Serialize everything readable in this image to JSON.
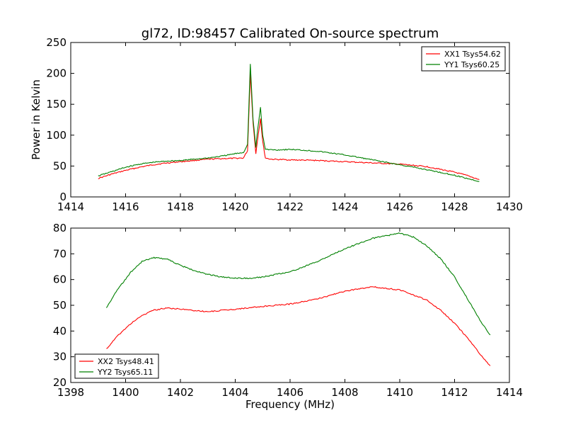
{
  "figure": {
    "title": "gl72, ID:98457 Calibrated On-source spectrum",
    "xlabel": "Frequency (MHz)"
  },
  "chart_data": [
    {
      "type": "line",
      "title": "gl72, ID:98457 Calibrated On-source spectrum",
      "xlabel": "",
      "ylabel": "Power in Kelvin",
      "xlim": [
        1414,
        1430
      ],
      "ylim": [
        0,
        250
      ],
      "xticks": [
        1414,
        1416,
        1418,
        1420,
        1422,
        1424,
        1426,
        1428,
        1430
      ],
      "yticks": [
        0,
        50,
        100,
        150,
        200,
        250
      ],
      "grid": false,
      "legend_position": "top-right",
      "series": [
        {
          "name": "XX1 Tsys54.62",
          "color": "#ff0000",
          "points": [
            [
              1415.0,
              30
            ],
            [
              1415.5,
              37
            ],
            [
              1416.0,
              43
            ],
            [
              1416.5,
              48
            ],
            [
              1417.0,
              52
            ],
            [
              1417.5,
              55
            ],
            [
              1418.0,
              57
            ],
            [
              1418.5,
              59
            ],
            [
              1419.0,
              61
            ],
            [
              1419.5,
              62
            ],
            [
              1420.0,
              62.5
            ],
            [
              1420.3,
              63
            ],
            [
              1420.45,
              75
            ],
            [
              1420.55,
              200
            ],
            [
              1420.65,
              120
            ],
            [
              1420.75,
              70
            ],
            [
              1420.82,
              95
            ],
            [
              1420.92,
              127
            ],
            [
              1421.0,
              90
            ],
            [
              1421.1,
              63
            ],
            [
              1421.3,
              61
            ],
            [
              1422.0,
              60
            ],
            [
              1423.0,
              59
            ],
            [
              1424.0,
              57
            ],
            [
              1425.0,
              55
            ],
            [
              1426.0,
              53
            ],
            [
              1427.0,
              49
            ],
            [
              1428.0,
              40
            ],
            [
              1428.5,
              34
            ],
            [
              1428.9,
              28
            ]
          ]
        },
        {
          "name": "YY1 Tsys60.25",
          "color": "#008000",
          "points": [
            [
              1415.0,
              34
            ],
            [
              1415.5,
              41
            ],
            [
              1416.0,
              48
            ],
            [
              1416.5,
              53
            ],
            [
              1417.0,
              56
            ],
            [
              1417.5,
              58
            ],
            [
              1418.0,
              59
            ],
            [
              1418.5,
              61
            ],
            [
              1419.0,
              63
            ],
            [
              1419.5,
              66
            ],
            [
              1420.0,
              70
            ],
            [
              1420.3,
              72
            ],
            [
              1420.45,
              85
            ],
            [
              1420.55,
              215
            ],
            [
              1420.65,
              125
            ],
            [
              1420.75,
              80
            ],
            [
              1420.82,
              110
            ],
            [
              1420.92,
              145
            ],
            [
              1421.0,
              100
            ],
            [
              1421.1,
              77
            ],
            [
              1421.5,
              76
            ],
            [
              1422.0,
              77
            ],
            [
              1423.0,
              74
            ],
            [
              1424.0,
              68
            ],
            [
              1425.0,
              60
            ],
            [
              1426.0,
              52
            ],
            [
              1427.0,
              44
            ],
            [
              1428.0,
              35
            ],
            [
              1428.9,
              25
            ]
          ]
        }
      ]
    },
    {
      "type": "line",
      "title": "",
      "xlabel": "Frequency (MHz)",
      "ylabel": "",
      "xlim": [
        1398,
        1414
      ],
      "ylim": [
        20,
        80
      ],
      "xticks": [
        1398,
        1400,
        1402,
        1404,
        1406,
        1408,
        1410,
        1412,
        1414
      ],
      "yticks": [
        20,
        30,
        40,
        50,
        60,
        70,
        80
      ],
      "grid": false,
      "legend_position": "bottom-left",
      "series": [
        {
          "name": "XX2 Tsys48.41",
          "color": "#ff0000",
          "points": [
            [
              1399.3,
              33
            ],
            [
              1399.7,
              38
            ],
            [
              1400.2,
              43
            ],
            [
              1400.6,
              46
            ],
            [
              1401.0,
              48
            ],
            [
              1401.5,
              49
            ],
            [
              1402.0,
              48.5
            ],
            [
              1403.0,
              47.5
            ],
            [
              1404.0,
              48.5
            ],
            [
              1405.0,
              49.5
            ],
            [
              1406.0,
              50.5
            ],
            [
              1407.0,
              52.5
            ],
            [
              1408.0,
              55.5
            ],
            [
              1409.0,
              57.2
            ],
            [
              1410.0,
              56
            ],
            [
              1410.5,
              54
            ],
            [
              1411.0,
              52
            ],
            [
              1411.5,
              48
            ],
            [
              1412.0,
              43
            ],
            [
              1412.5,
              37
            ],
            [
              1413.0,
              30
            ],
            [
              1413.3,
              26.5
            ]
          ]
        },
        {
          "name": "YY2 Tsys65.11",
          "color": "#008000",
          "points": [
            [
              1399.3,
              49
            ],
            [
              1399.7,
              56
            ],
            [
              1400.2,
              63
            ],
            [
              1400.6,
              67
            ],
            [
              1401.0,
              68.5
            ],
            [
              1401.5,
              68
            ],
            [
              1402.0,
              65.5
            ],
            [
              1402.5,
              63.5
            ],
            [
              1403.0,
              62
            ],
            [
              1403.5,
              61
            ],
            [
              1404.0,
              60.5
            ],
            [
              1404.5,
              60.5
            ],
            [
              1405.0,
              61
            ],
            [
              1406.0,
              63
            ],
            [
              1407.0,
              67
            ],
            [
              1408.0,
              72
            ],
            [
              1409.0,
              76
            ],
            [
              1410.0,
              78
            ],
            [
              1410.5,
              76.5
            ],
            [
              1411.0,
              73
            ],
            [
              1411.5,
              68
            ],
            [
              1412.0,
              61
            ],
            [
              1412.5,
              52
            ],
            [
              1413.0,
              43
            ],
            [
              1413.3,
              38.5
            ]
          ]
        }
      ]
    }
  ]
}
